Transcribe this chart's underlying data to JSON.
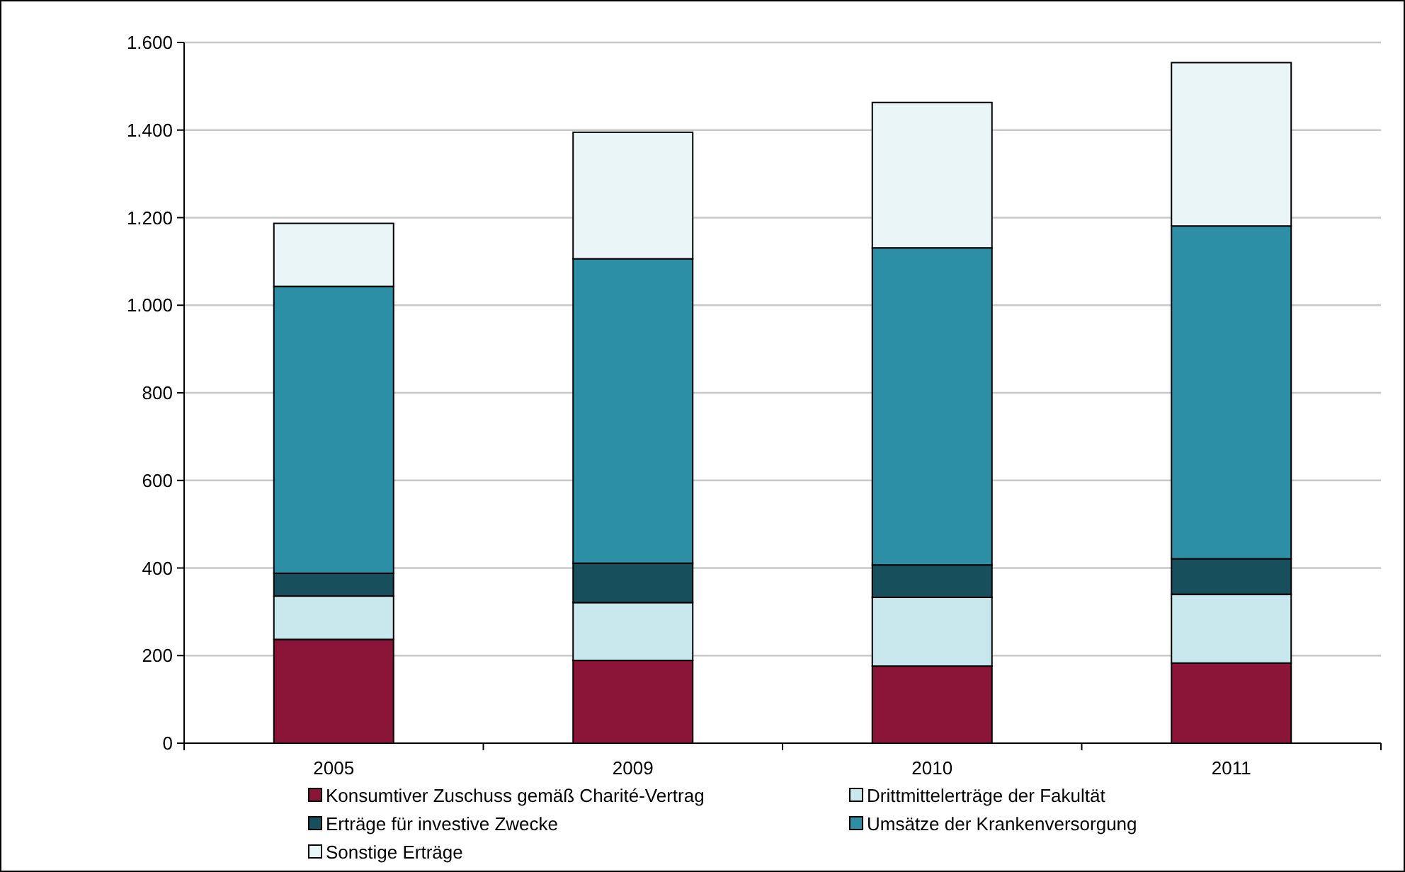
{
  "chart_data": {
    "type": "bar",
    "stacked": true,
    "categories": [
      "2005",
      "2009",
      "2010",
      "2011"
    ],
    "series": [
      {
        "name": "Konsumtiver Zuschuss gemäß Charité-Vertrag",
        "color": "#8b1538",
        "values": [
          237,
          189,
          176,
          183
        ]
      },
      {
        "name": "Drittmittelerträge der Fakultät",
        "color": "#c8e8ee",
        "values": [
          99,
          132,
          157,
          157
        ]
      },
      {
        "name": "Erträge für investive Zwecke",
        "color": "#174f5c",
        "values": [
          52,
          90,
          74,
          81
        ]
      },
      {
        "name": "Umsätze der Krankenversorgung",
        "color": "#2c8fa6",
        "values": [
          655,
          695,
          724,
          760
        ]
      },
      {
        "name": "Sonstige Erträge",
        "color": "#eaf5f7",
        "values": [
          144,
          289,
          332,
          373
        ]
      }
    ],
    "ylim": [
      0,
      1600
    ],
    "yticks": [
      0,
      200,
      400,
      600,
      800,
      {
        "value": 1000,
        "label": "1.000"
      },
      {
        "value": 1200,
        "label": "1.200"
      },
      {
        "value": 1400,
        "label": "1.400"
      },
      {
        "value": 1600,
        "label": "1.600"
      }
    ],
    "grid": "y",
    "legend": "bottom"
  }
}
